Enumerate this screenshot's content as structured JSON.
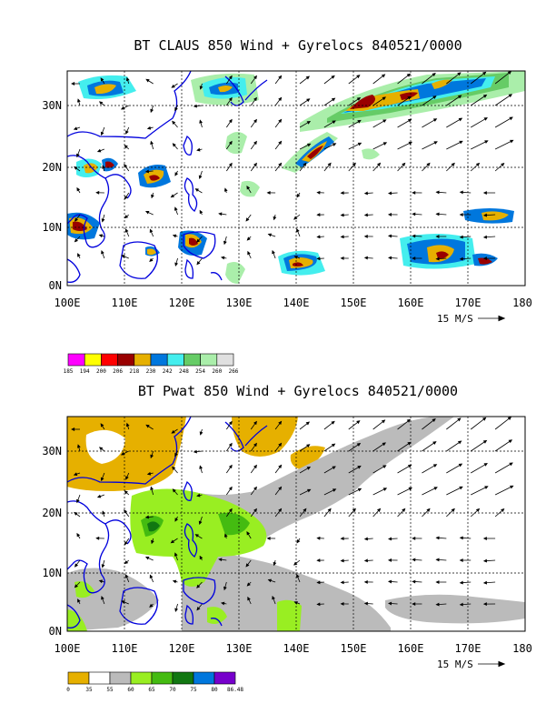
{
  "panel_top": {
    "title": "BT CLAUS 850 Wind + Gyrelocs 840521/0000",
    "lat_labels": [
      "30N",
      "20N",
      "10N",
      "0N"
    ],
    "lon_labels": [
      "100E",
      "110E",
      "120E",
      "130E",
      "140E",
      "150E",
      "160E",
      "170E",
      "180"
    ],
    "vector_scale": "15 M/S",
    "colorbar": {
      "colors": [
        "#ff00ff",
        "#ffff00",
        "#ff0000",
        "#990000",
        "#e6b000",
        "#0077dd",
        "#44eeee",
        "#66cc66",
        "#aaeeaa",
        "#e0e0e0"
      ],
      "labels": [
        "185",
        "194",
        "200",
        "206",
        "218",
        "230",
        "242",
        "248",
        "254",
        "260",
        "266"
      ]
    }
  },
  "panel_bottom": {
    "title": "BT Pwat 850 Wind + Gyrelocs 840521/0000",
    "lat_labels": [
      "30N",
      "20N",
      "10N",
      "0N"
    ],
    "lon_labels": [
      "100E",
      "110E",
      "120E",
      "130E",
      "140E",
      "150E",
      "160E",
      "170E",
      "180"
    ],
    "vector_scale": "15 M/S",
    "colorbar": {
      "colors": [
        "#e6b000",
        "#ffffff",
        "#bbbbbb",
        "#99ee22",
        "#44bb11",
        "#117711",
        "#0077dd",
        "#7700cc"
      ],
      "labels": [
        "0",
        "35",
        "55",
        "60",
        "65",
        "70",
        "75",
        "80",
        "86.48"
      ]
    }
  }
}
